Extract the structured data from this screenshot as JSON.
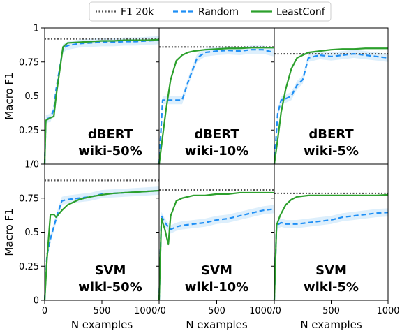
{
  "colors": {
    "f1": "#555555",
    "random": "#1f8ff5",
    "leastconf": "#2ca02c",
    "band": "#cfe8fb",
    "axis": "#000000"
  },
  "legend": {
    "items": [
      {
        "key": "f1",
        "label": "F1 20k",
        "style": "dotted"
      },
      {
        "key": "random",
        "label": "Random",
        "style": "dashed"
      },
      {
        "key": "leastconf",
        "label": "LeastConf",
        "style": "solid"
      }
    ]
  },
  "chart_data": [
    {
      "type": "line",
      "model": "dBERT",
      "dataset": "wiki-50%",
      "xlim": [
        0,
        1000
      ],
      "ylim": [
        0,
        1
      ],
      "f1_20k": 0.92,
      "series": [
        {
          "name": "Random",
          "x": [
            0,
            10,
            50,
            80,
            100,
            130,
            160,
            200,
            300,
            400,
            500,
            600,
            700,
            800,
            900,
            1000
          ],
          "y": [
            0,
            0.33,
            0.34,
            0.4,
            0.55,
            0.7,
            0.85,
            0.87,
            0.885,
            0.89,
            0.895,
            0.895,
            0.9,
            0.9,
            0.905,
            0.91
          ]
        },
        {
          "name": "LeastConf",
          "x": [
            0,
            10,
            50,
            80,
            100,
            130,
            160,
            200,
            300,
            400,
            500,
            600,
            700,
            800,
            900,
            1000
          ],
          "y": [
            0,
            0.32,
            0.34,
            0.35,
            0.5,
            0.68,
            0.86,
            0.89,
            0.895,
            0.9,
            0.905,
            0.905,
            0.91,
            0.91,
            0.91,
            0.915
          ]
        }
      ]
    },
    {
      "type": "line",
      "model": "dBERT",
      "dataset": "wiki-10%",
      "xlim": [
        0,
        1000
      ],
      "ylim": [
        0,
        1
      ],
      "f1_20k": 0.86,
      "series": [
        {
          "name": "Random",
          "x": [
            0,
            30,
            60,
            100,
            200,
            250,
            330,
            400,
            500,
            600,
            700,
            800,
            900,
            950,
            1000
          ],
          "y": [
            0,
            0.47,
            0.47,
            0.47,
            0.47,
            0.6,
            0.78,
            0.82,
            0.83,
            0.835,
            0.83,
            0.84,
            0.84,
            0.83,
            0.82
          ]
        },
        {
          "name": "LeastConf",
          "x": [
            0,
            30,
            60,
            100,
            150,
            200,
            250,
            300,
            400,
            500,
            600,
            700,
            800,
            900,
            1000
          ],
          "y": [
            0,
            0.2,
            0.4,
            0.62,
            0.76,
            0.8,
            0.82,
            0.83,
            0.84,
            0.845,
            0.85,
            0.85,
            0.855,
            0.855,
            0.855
          ]
        }
      ]
    },
    {
      "type": "line",
      "model": "dBERT",
      "dataset": "wiki-5%",
      "xlim": [
        0,
        1000
      ],
      "ylim": [
        0,
        1
      ],
      "f1_20k": 0.81,
      "series": [
        {
          "name": "Random",
          "x": [
            0,
            30,
            60,
            100,
            150,
            200,
            250,
            300,
            400,
            500,
            600,
            700,
            800,
            900,
            1000
          ],
          "y": [
            0,
            0.37,
            0.47,
            0.48,
            0.5,
            0.58,
            0.62,
            0.78,
            0.8,
            0.79,
            0.8,
            0.81,
            0.8,
            0.79,
            0.78
          ]
        },
        {
          "name": "LeastConf",
          "x": [
            0,
            30,
            60,
            100,
            150,
            200,
            250,
            300,
            400,
            500,
            600,
            700,
            800,
            900,
            1000
          ],
          "y": [
            0,
            0.18,
            0.38,
            0.55,
            0.7,
            0.78,
            0.8,
            0.82,
            0.83,
            0.84,
            0.845,
            0.845,
            0.85,
            0.85,
            0.85
          ]
        }
      ]
    },
    {
      "type": "line",
      "model": "SVM",
      "dataset": "wiki-50%",
      "xlim": [
        0,
        1000
      ],
      "ylim": [
        0,
        1
      ],
      "f1_20k": 0.88,
      "series": [
        {
          "name": "Random",
          "x": [
            0,
            20,
            50,
            100,
            150,
            200,
            300,
            400,
            500,
            600,
            700,
            800,
            900,
            1000
          ],
          "y": [
            0,
            0.33,
            0.45,
            0.6,
            0.73,
            0.74,
            0.75,
            0.76,
            0.78,
            0.785,
            0.79,
            0.795,
            0.8,
            0.805
          ]
        },
        {
          "name": "LeastConf",
          "x": [
            0,
            20,
            50,
            80,
            100,
            150,
            200,
            300,
            400,
            500,
            600,
            700,
            800,
            900,
            1000
          ],
          "y": [
            0,
            0.3,
            0.63,
            0.63,
            0.61,
            0.66,
            0.7,
            0.74,
            0.76,
            0.775,
            0.785,
            0.79,
            0.795,
            0.8,
            0.805
          ]
        }
      ]
    },
    {
      "type": "line",
      "model": "SVM",
      "dataset": "wiki-10%",
      "xlim": [
        0,
        1000
      ],
      "ylim": [
        0,
        1
      ],
      "f1_20k": 0.81,
      "series": [
        {
          "name": "Random",
          "x": [
            0,
            20,
            50,
            80,
            100,
            150,
            200,
            300,
            400,
            500,
            600,
            700,
            800,
            900,
            1000
          ],
          "y": [
            0,
            0.62,
            0.57,
            0.54,
            0.52,
            0.54,
            0.55,
            0.56,
            0.57,
            0.59,
            0.6,
            0.62,
            0.64,
            0.66,
            0.67
          ]
        },
        {
          "name": "LeastConf",
          "x": [
            0,
            20,
            50,
            80,
            100,
            150,
            200,
            300,
            400,
            500,
            600,
            700,
            800,
            900,
            1000
          ],
          "y": [
            0,
            0.6,
            0.52,
            0.41,
            0.62,
            0.73,
            0.75,
            0.77,
            0.77,
            0.78,
            0.78,
            0.79,
            0.79,
            0.79,
            0.79
          ]
        }
      ]
    },
    {
      "type": "line",
      "model": "SVM",
      "dataset": "wiki-5%",
      "xlim": [
        0,
        1000
      ],
      "ylim": [
        0,
        1
      ],
      "f1_20k": 0.785,
      "series": [
        {
          "name": "Random",
          "x": [
            0,
            20,
            40,
            60,
            100,
            150,
            200,
            300,
            400,
            500,
            600,
            700,
            800,
            900,
            1000
          ],
          "y": [
            0,
            0.55,
            0.56,
            0.57,
            0.56,
            0.56,
            0.56,
            0.57,
            0.58,
            0.59,
            0.61,
            0.62,
            0.63,
            0.64,
            0.645
          ]
        },
        {
          "name": "LeastConf",
          "x": [
            0,
            20,
            50,
            100,
            150,
            200,
            300,
            400,
            500,
            600,
            700,
            800,
            900,
            1000
          ],
          "y": [
            0,
            0.55,
            0.62,
            0.7,
            0.74,
            0.76,
            0.77,
            0.77,
            0.77,
            0.77,
            0.77,
            0.77,
            0.77,
            0.775
          ]
        }
      ]
    }
  ],
  "axes": {
    "ylabel": "Macro F1",
    "xlabel": "N examples",
    "yticks_top": [
      "0.25",
      "0.5",
      "0.75",
      "1"
    ],
    "yticks_bottom": [
      "0",
      "0.25",
      "0.5",
      "0.75",
      "1/0"
    ],
    "xticks": [
      [
        {
          "v": 0,
          "t": "0"
        },
        {
          "v": 500,
          "t": "500"
        },
        {
          "v": 1000,
          "t": "1000/0"
        }
      ],
      [
        {
          "v": 500,
          "t": "500"
        },
        {
          "v": 1000,
          "t": "1000/0"
        }
      ],
      [
        {
          "v": 500,
          "t": "500"
        },
        {
          "v": 1000,
          "t": "1000"
        }
      ]
    ]
  }
}
